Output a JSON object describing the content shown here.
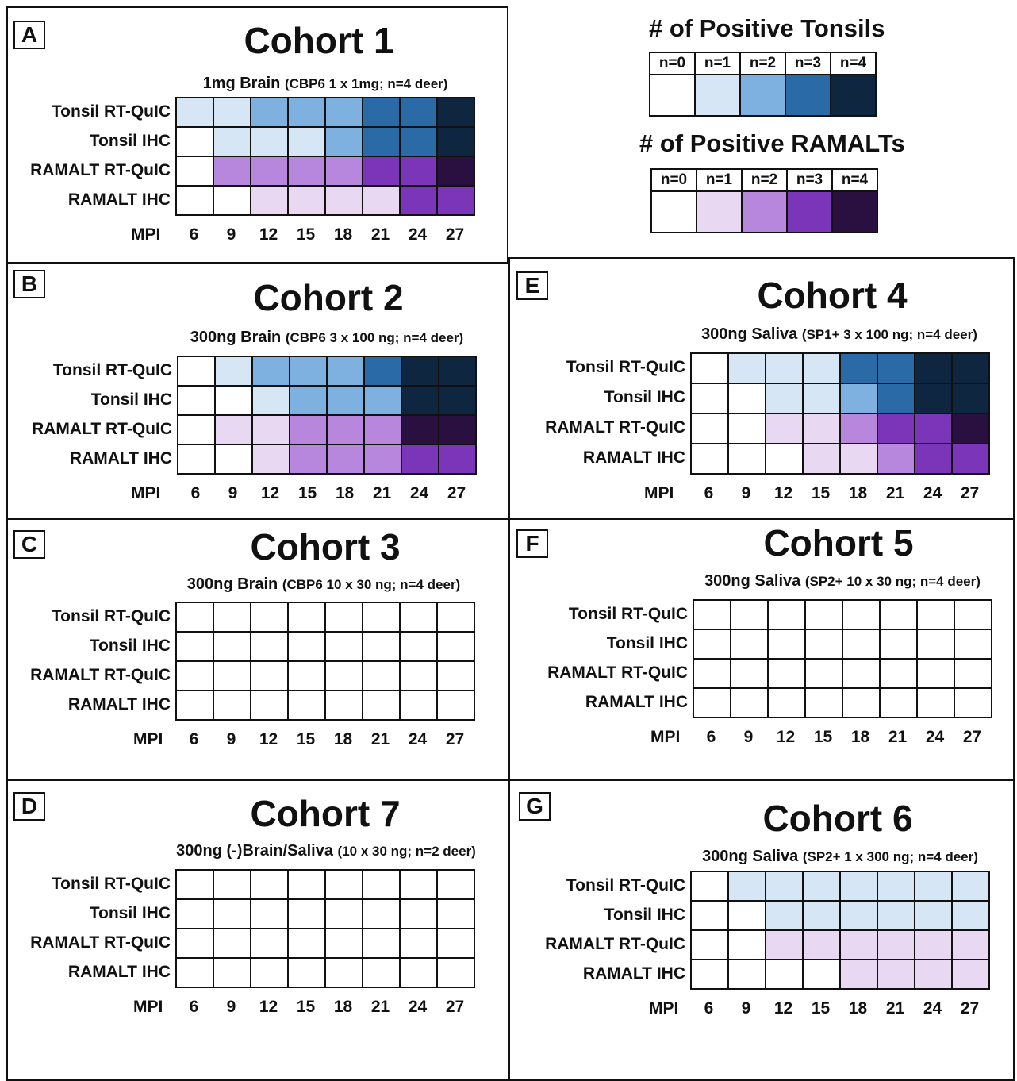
{
  "colors": {
    "tonsil": [
      "#ffffff",
      "#d6e6f5",
      "#7eb0e0",
      "#2a6aa6",
      "#0f2640"
    ],
    "ramalt": [
      "#ffffff",
      "#e8d8f2",
      "#b786dd",
      "#7a35b8",
      "#2a1040"
    ]
  },
  "legend": {
    "tonsils": {
      "title": "# of Positive Tonsils",
      "labels": [
        "n=0",
        "n=1",
        "n=2",
        "n=3",
        "n=4"
      ]
    },
    "ramalts": {
      "title": "# of Positive RAMALTs",
      "labels": [
        "n=0",
        "n=1",
        "n=2",
        "n=3",
        "n=4"
      ]
    }
  },
  "axis": {
    "label": "MPI"
  },
  "chart_data": [
    {
      "type": "heatmap",
      "panel": "A",
      "title": "Cohort 1",
      "subtitle_main": "1mg Brain",
      "subtitle_detail": "(CBP6 1 x 1mg; n=4 deer)",
      "x": [
        "6",
        "9",
        "12",
        "15",
        "18",
        "21",
        "24",
        "27"
      ],
      "rows": [
        "Tonsil RT-QuIC",
        "Tonsil IHC",
        "RAMALT RT-QuIC",
        "RAMALT IHC"
      ],
      "values": [
        [
          1,
          1,
          2,
          2,
          2,
          3,
          3,
          4
        ],
        [
          0,
          1,
          1,
          1,
          2,
          3,
          3,
          4
        ],
        [
          0,
          2,
          2,
          2,
          2,
          3,
          3,
          4
        ],
        [
          0,
          0,
          1,
          1,
          1,
          1,
          3,
          3
        ]
      ]
    },
    {
      "type": "heatmap",
      "panel": "B",
      "title": "Cohort 2",
      "subtitle_main": "300ng Brain",
      "subtitle_detail": "(CBP6 3 x 100 ng; n=4 deer)",
      "x": [
        "6",
        "9",
        "12",
        "15",
        "18",
        "21",
        "24",
        "27"
      ],
      "rows": [
        "Tonsil RT-QuIC",
        "Tonsil IHC",
        "RAMALT RT-QuIC",
        "RAMALT IHC"
      ],
      "values": [
        [
          0,
          1,
          2,
          2,
          2,
          3,
          4,
          4
        ],
        [
          0,
          0,
          1,
          2,
          2,
          2,
          4,
          4
        ],
        [
          0,
          1,
          1,
          2,
          2,
          2,
          4,
          4
        ],
        [
          0,
          0,
          1,
          2,
          2,
          2,
          3,
          3
        ]
      ]
    },
    {
      "type": "heatmap",
      "panel": "C",
      "title": "Cohort 3",
      "subtitle_main": "300ng Brain",
      "subtitle_detail": "(CBP6 10 x 30 ng; n=4 deer)",
      "x": [
        "6",
        "9",
        "12",
        "15",
        "18",
        "21",
        "24",
        "27"
      ],
      "rows": [
        "Tonsil RT-QuIC",
        "Tonsil IHC",
        "RAMALT RT-QuIC",
        "RAMALT IHC"
      ],
      "values": [
        [
          0,
          0,
          0,
          0,
          0,
          0,
          0,
          0
        ],
        [
          0,
          0,
          0,
          0,
          0,
          0,
          0,
          0
        ],
        [
          0,
          0,
          0,
          0,
          0,
          0,
          0,
          0
        ],
        [
          0,
          0,
          0,
          0,
          0,
          0,
          0,
          0
        ]
      ]
    },
    {
      "type": "heatmap",
      "panel": "D",
      "title": "Cohort 7",
      "subtitle_main": "300ng (-)Brain/Saliva",
      "subtitle_detail": "(10 x 30 ng; n=2 deer)",
      "x": [
        "6",
        "9",
        "12",
        "15",
        "18",
        "21",
        "24",
        "27"
      ],
      "rows": [
        "Tonsil RT-QuIC",
        "Tonsil IHC",
        "RAMALT RT-QuIC",
        "RAMALT IHC"
      ],
      "values": [
        [
          0,
          0,
          0,
          0,
          0,
          0,
          0,
          0
        ],
        [
          0,
          0,
          0,
          0,
          0,
          0,
          0,
          0
        ],
        [
          0,
          0,
          0,
          0,
          0,
          0,
          0,
          0
        ],
        [
          0,
          0,
          0,
          0,
          0,
          0,
          0,
          0
        ]
      ]
    },
    {
      "type": "heatmap",
      "panel": "E",
      "title": "Cohort 4",
      "subtitle_main": "300ng Saliva",
      "subtitle_detail": "(SP1+ 3 x 100 ng; n=4 deer)",
      "x": [
        "6",
        "9",
        "12",
        "15",
        "18",
        "21",
        "24",
        "27"
      ],
      "rows": [
        "Tonsil RT-QuIC",
        "Tonsil IHC",
        "RAMALT RT-QuIC",
        "RAMALT IHC"
      ],
      "values": [
        [
          0,
          1,
          1,
          1,
          3,
          3,
          4,
          4
        ],
        [
          0,
          0,
          1,
          1,
          2,
          3,
          4,
          4
        ],
        [
          0,
          0,
          1,
          1,
          2,
          3,
          3,
          4
        ],
        [
          0,
          0,
          0,
          1,
          1,
          2,
          3,
          3
        ]
      ]
    },
    {
      "type": "heatmap",
      "panel": "F",
      "title": "Cohort 5",
      "subtitle_main": "300ng Saliva",
      "subtitle_detail": "(SP2+ 10 x 30 ng; n=4 deer)",
      "x": [
        "6",
        "9",
        "12",
        "15",
        "18",
        "21",
        "24",
        "27"
      ],
      "rows": [
        "Tonsil RT-QuIC",
        "Tonsil IHC",
        "RAMALT RT-QuIC",
        "RAMALT IHC"
      ],
      "values": [
        [
          0,
          0,
          0,
          0,
          0,
          0,
          0,
          0
        ],
        [
          0,
          0,
          0,
          0,
          0,
          0,
          0,
          0
        ],
        [
          0,
          0,
          0,
          0,
          0,
          0,
          0,
          0
        ],
        [
          0,
          0,
          0,
          0,
          0,
          0,
          0,
          0
        ]
      ]
    },
    {
      "type": "heatmap",
      "panel": "G",
      "title": "Cohort 6",
      "subtitle_main": "300ng Saliva",
      "subtitle_detail": "(SP2+ 1 x 300 ng; n=4 deer)",
      "x": [
        "6",
        "9",
        "12",
        "15",
        "18",
        "21",
        "24",
        "27"
      ],
      "rows": [
        "Tonsil RT-QuIC",
        "Tonsil IHC",
        "RAMALT RT-QuIC",
        "RAMALT IHC"
      ],
      "values": [
        [
          0,
          1,
          1,
          1,
          1,
          1,
          1,
          1
        ],
        [
          0,
          0,
          1,
          1,
          1,
          1,
          1,
          1
        ],
        [
          0,
          0,
          1,
          1,
          1,
          1,
          1,
          1
        ],
        [
          0,
          0,
          0,
          0,
          1,
          1,
          1,
          1
        ]
      ]
    }
  ]
}
